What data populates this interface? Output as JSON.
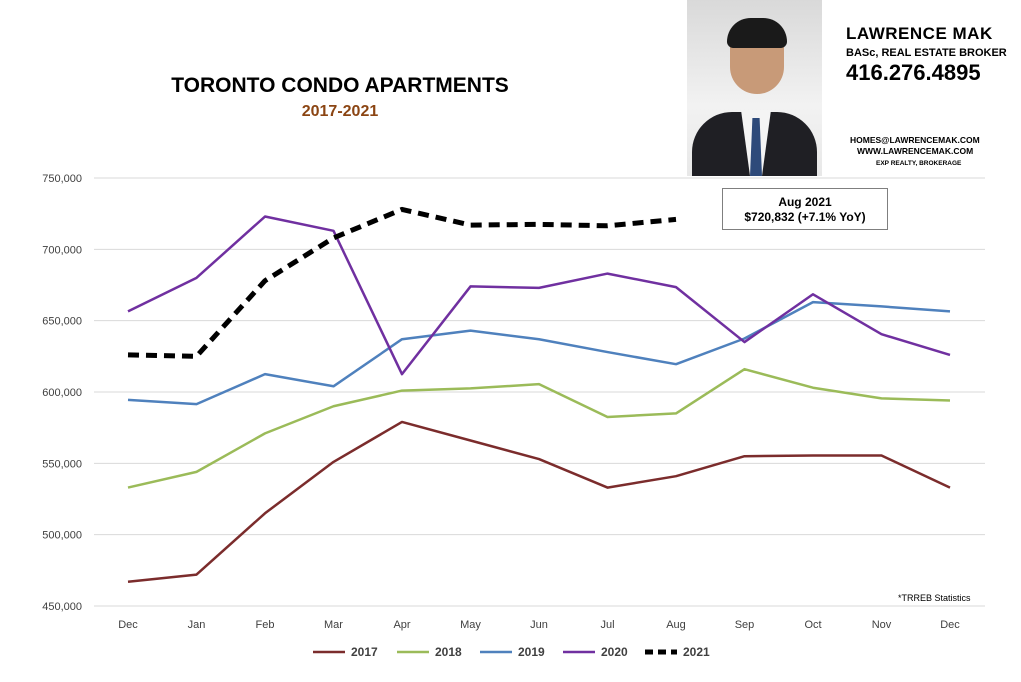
{
  "chart_data": {
    "type": "line",
    "title": "TORONTO CONDO APARTMENTS",
    "subtitle": "2017-2021",
    "categories": [
      "Dec",
      "Jan",
      "Feb",
      "Mar",
      "Apr",
      "May",
      "Jun",
      "Jul",
      "Aug",
      "Sep",
      "Oct",
      "Nov",
      "Dec"
    ],
    "y_ticks": [
      "450,000",
      "500,000",
      "550,000",
      "600,000",
      "650,000",
      "700,000",
      "750,000"
    ],
    "ylim": [
      450000,
      750000
    ],
    "grid": true,
    "legend_placement": "bottom",
    "series": [
      {
        "name": "2017",
        "color": "#7b2c2c",
        "dashed": false,
        "values": [
          467000,
          472000,
          515000,
          551000,
          579000,
          566000,
          553000,
          533000,
          541000,
          555000,
          555500,
          555500,
          533000
        ]
      },
      {
        "name": "2018",
        "color": "#9bbb59",
        "dashed": false,
        "values": [
          533000,
          544000,
          571000,
          590000,
          601000,
          602500,
          605500,
          582500,
          585000,
          616000,
          603000,
          595500,
          594000
        ]
      },
      {
        "name": "2019",
        "color": "#4f81bd",
        "dashed": false,
        "values": [
          594500,
          591500,
          612500,
          604000,
          637000,
          643000,
          637000,
          628000,
          619500,
          637500,
          663000,
          660000,
          656500
        ]
      },
      {
        "name": "2020",
        "color": "#7030a0",
        "dashed": false,
        "values": [
          656500,
          680000,
          723000,
          713000,
          612500,
          674000,
          673000,
          683000,
          673500,
          635000,
          668500,
          640500,
          626000
        ]
      },
      {
        "name": "2021",
        "color": "#000000",
        "dashed": true,
        "values": [
          626000,
          625000,
          678000,
          708000,
          728000,
          717000,
          717500,
          716500,
          721000,
          null,
          null,
          null,
          null
        ]
      }
    ],
    "annotation": {
      "line1": "Aug 2021",
      "line2": "$720,832  (+7.1%  YoY)"
    },
    "source_note": "*TRREB Statistics"
  },
  "agent": {
    "name": "LAWRENCE MAK",
    "title": "BASc, REAL ESTATE BROKER",
    "phone": "416.276.4895",
    "email": "HOMES@LAWRENCEMAK.COM",
    "website": "WWW.LAWRENCEMAK.COM",
    "brokerage": "EXP REALTY, BROKERAGE"
  }
}
